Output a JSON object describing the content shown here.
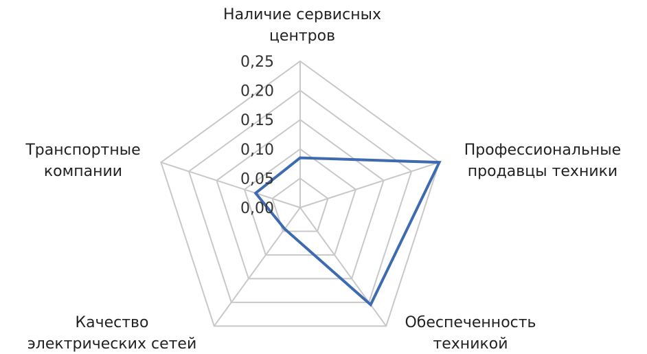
{
  "chart_data": {
    "type": "radar",
    "categories": [
      [
        "Наличие сервисных",
        "центров"
      ],
      [
        "Профессиональные",
        "продавцы техники"
      ],
      [
        "Обеспеченность",
        "техникой"
      ],
      [
        "Качество",
        "электрических сетей"
      ],
      [
        "Транспортные",
        "компании"
      ]
    ],
    "ticks": [
      "0,00",
      "0,05",
      "0,10",
      "0,15",
      "0,20",
      "0,25"
    ],
    "rlim": [
      0,
      0.25
    ],
    "series": [
      {
        "values": [
          0.085,
          0.25,
          0.205,
          0.045,
          0.08
        ],
        "color": "#3e6bb0"
      }
    ],
    "grid": true,
    "legend": "none"
  }
}
